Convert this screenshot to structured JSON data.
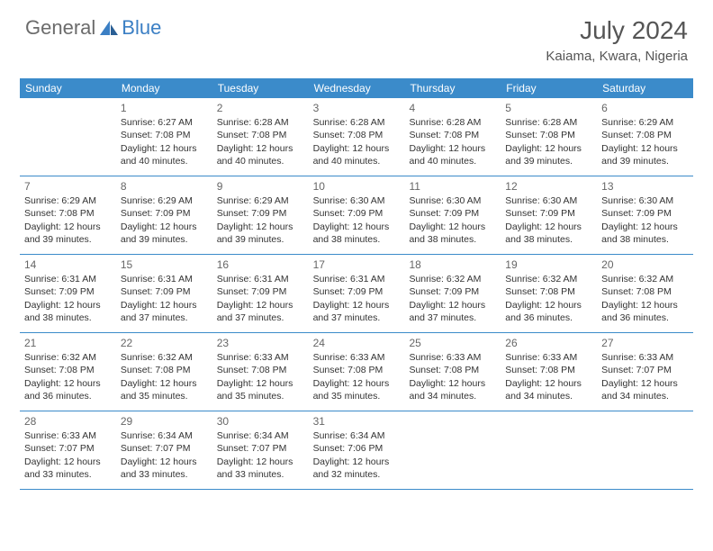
{
  "logo": {
    "general": "General",
    "blue": "Blue"
  },
  "title": "July 2024",
  "location": "Kaiama, Kwara, Nigeria",
  "colors": {
    "header_bg": "#3b8bca",
    "header_text": "#ffffff",
    "row_border": "#3b8bca",
    "title_color": "#555555",
    "logo_gray": "#6b6b6b",
    "logo_blue": "#3b7fc4",
    "body_text": "#333333",
    "daynum_color": "#666666"
  },
  "days_of_week": [
    "Sunday",
    "Monday",
    "Tuesday",
    "Wednesday",
    "Thursday",
    "Friday",
    "Saturday"
  ],
  "weeks": [
    [
      {
        "num": "",
        "lines": []
      },
      {
        "num": "1",
        "lines": [
          "Sunrise: 6:27 AM",
          "Sunset: 7:08 PM",
          "Daylight: 12 hours",
          "and 40 minutes."
        ]
      },
      {
        "num": "2",
        "lines": [
          "Sunrise: 6:28 AM",
          "Sunset: 7:08 PM",
          "Daylight: 12 hours",
          "and 40 minutes."
        ]
      },
      {
        "num": "3",
        "lines": [
          "Sunrise: 6:28 AM",
          "Sunset: 7:08 PM",
          "Daylight: 12 hours",
          "and 40 minutes."
        ]
      },
      {
        "num": "4",
        "lines": [
          "Sunrise: 6:28 AM",
          "Sunset: 7:08 PM",
          "Daylight: 12 hours",
          "and 40 minutes."
        ]
      },
      {
        "num": "5",
        "lines": [
          "Sunrise: 6:28 AM",
          "Sunset: 7:08 PM",
          "Daylight: 12 hours",
          "and 39 minutes."
        ]
      },
      {
        "num": "6",
        "lines": [
          "Sunrise: 6:29 AM",
          "Sunset: 7:08 PM",
          "Daylight: 12 hours",
          "and 39 minutes."
        ]
      }
    ],
    [
      {
        "num": "7",
        "lines": [
          "Sunrise: 6:29 AM",
          "Sunset: 7:08 PM",
          "Daylight: 12 hours",
          "and 39 minutes."
        ]
      },
      {
        "num": "8",
        "lines": [
          "Sunrise: 6:29 AM",
          "Sunset: 7:09 PM",
          "Daylight: 12 hours",
          "and 39 minutes."
        ]
      },
      {
        "num": "9",
        "lines": [
          "Sunrise: 6:29 AM",
          "Sunset: 7:09 PM",
          "Daylight: 12 hours",
          "and 39 minutes."
        ]
      },
      {
        "num": "10",
        "lines": [
          "Sunrise: 6:30 AM",
          "Sunset: 7:09 PM",
          "Daylight: 12 hours",
          "and 38 minutes."
        ]
      },
      {
        "num": "11",
        "lines": [
          "Sunrise: 6:30 AM",
          "Sunset: 7:09 PM",
          "Daylight: 12 hours",
          "and 38 minutes."
        ]
      },
      {
        "num": "12",
        "lines": [
          "Sunrise: 6:30 AM",
          "Sunset: 7:09 PM",
          "Daylight: 12 hours",
          "and 38 minutes."
        ]
      },
      {
        "num": "13",
        "lines": [
          "Sunrise: 6:30 AM",
          "Sunset: 7:09 PM",
          "Daylight: 12 hours",
          "and 38 minutes."
        ]
      }
    ],
    [
      {
        "num": "14",
        "lines": [
          "Sunrise: 6:31 AM",
          "Sunset: 7:09 PM",
          "Daylight: 12 hours",
          "and 38 minutes."
        ]
      },
      {
        "num": "15",
        "lines": [
          "Sunrise: 6:31 AM",
          "Sunset: 7:09 PM",
          "Daylight: 12 hours",
          "and 37 minutes."
        ]
      },
      {
        "num": "16",
        "lines": [
          "Sunrise: 6:31 AM",
          "Sunset: 7:09 PM",
          "Daylight: 12 hours",
          "and 37 minutes."
        ]
      },
      {
        "num": "17",
        "lines": [
          "Sunrise: 6:31 AM",
          "Sunset: 7:09 PM",
          "Daylight: 12 hours",
          "and 37 minutes."
        ]
      },
      {
        "num": "18",
        "lines": [
          "Sunrise: 6:32 AM",
          "Sunset: 7:09 PM",
          "Daylight: 12 hours",
          "and 37 minutes."
        ]
      },
      {
        "num": "19",
        "lines": [
          "Sunrise: 6:32 AM",
          "Sunset: 7:08 PM",
          "Daylight: 12 hours",
          "and 36 minutes."
        ]
      },
      {
        "num": "20",
        "lines": [
          "Sunrise: 6:32 AM",
          "Sunset: 7:08 PM",
          "Daylight: 12 hours",
          "and 36 minutes."
        ]
      }
    ],
    [
      {
        "num": "21",
        "lines": [
          "Sunrise: 6:32 AM",
          "Sunset: 7:08 PM",
          "Daylight: 12 hours",
          "and 36 minutes."
        ]
      },
      {
        "num": "22",
        "lines": [
          "Sunrise: 6:32 AM",
          "Sunset: 7:08 PM",
          "Daylight: 12 hours",
          "and 35 minutes."
        ]
      },
      {
        "num": "23",
        "lines": [
          "Sunrise: 6:33 AM",
          "Sunset: 7:08 PM",
          "Daylight: 12 hours",
          "and 35 minutes."
        ]
      },
      {
        "num": "24",
        "lines": [
          "Sunrise: 6:33 AM",
          "Sunset: 7:08 PM",
          "Daylight: 12 hours",
          "and 35 minutes."
        ]
      },
      {
        "num": "25",
        "lines": [
          "Sunrise: 6:33 AM",
          "Sunset: 7:08 PM",
          "Daylight: 12 hours",
          "and 34 minutes."
        ]
      },
      {
        "num": "26",
        "lines": [
          "Sunrise: 6:33 AM",
          "Sunset: 7:08 PM",
          "Daylight: 12 hours",
          "and 34 minutes."
        ]
      },
      {
        "num": "27",
        "lines": [
          "Sunrise: 6:33 AM",
          "Sunset: 7:07 PM",
          "Daylight: 12 hours",
          "and 34 minutes."
        ]
      }
    ],
    [
      {
        "num": "28",
        "lines": [
          "Sunrise: 6:33 AM",
          "Sunset: 7:07 PM",
          "Daylight: 12 hours",
          "and 33 minutes."
        ]
      },
      {
        "num": "29",
        "lines": [
          "Sunrise: 6:34 AM",
          "Sunset: 7:07 PM",
          "Daylight: 12 hours",
          "and 33 minutes."
        ]
      },
      {
        "num": "30",
        "lines": [
          "Sunrise: 6:34 AM",
          "Sunset: 7:07 PM",
          "Daylight: 12 hours",
          "and 33 minutes."
        ]
      },
      {
        "num": "31",
        "lines": [
          "Sunrise: 6:34 AM",
          "Sunset: 7:06 PM",
          "Daylight: 12 hours",
          "and 32 minutes."
        ]
      },
      {
        "num": "",
        "lines": []
      },
      {
        "num": "",
        "lines": []
      },
      {
        "num": "",
        "lines": []
      }
    ]
  ]
}
